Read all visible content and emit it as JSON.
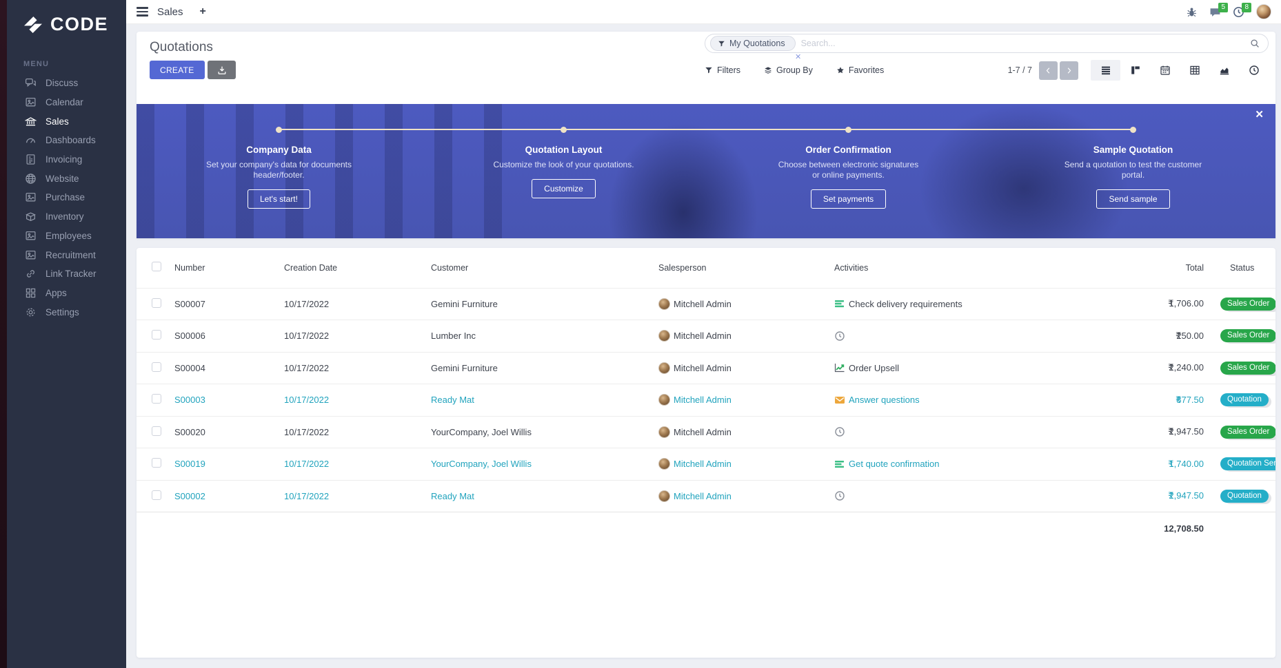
{
  "brand": {
    "name": "CODE"
  },
  "topbar": {
    "app_title": "Sales",
    "add_tab": "+",
    "message_badge": "5",
    "activity_badge": "8"
  },
  "sidebar": {
    "menu_label": "MENU",
    "items": [
      {
        "label": "Discuss",
        "icon": "chat",
        "active": false
      },
      {
        "label": "Calendar",
        "icon": "screen",
        "active": false
      },
      {
        "label": "Sales",
        "icon": "bank",
        "active": true
      },
      {
        "label": "Dashboards",
        "icon": "gauge",
        "active": false
      },
      {
        "label": "Invoicing",
        "icon": "invoice",
        "active": false
      },
      {
        "label": "Website",
        "icon": "globe",
        "active": false
      },
      {
        "label": "Purchase",
        "icon": "screen",
        "active": false
      },
      {
        "label": "Inventory",
        "icon": "box",
        "active": false
      },
      {
        "label": "Employees",
        "icon": "screen",
        "active": false
      },
      {
        "label": "Recruitment",
        "icon": "screen",
        "active": false
      },
      {
        "label": "Link Tracker",
        "icon": "link",
        "active": false
      },
      {
        "label": "Apps",
        "icon": "grid",
        "active": false
      },
      {
        "label": "Settings",
        "icon": "gear",
        "active": false
      }
    ]
  },
  "toolbar": {
    "title": "Quotations",
    "create_label": "CREATE",
    "search": {
      "facet": "My Quotations",
      "placeholder": "Search...",
      "facet_remove": "✕"
    },
    "filters_label": "Filters",
    "groupby_label": "Group By",
    "favorites_label": "Favorites",
    "pager": {
      "text": "1-7 / 7"
    },
    "views": [
      {
        "name": "list",
        "active": true
      },
      {
        "name": "kanban",
        "active": false
      },
      {
        "name": "calendar",
        "active": false
      },
      {
        "name": "pivot",
        "active": false
      },
      {
        "name": "graph",
        "active": false
      },
      {
        "name": "activity",
        "active": false
      }
    ]
  },
  "banner": {
    "close": "✕",
    "steps": [
      {
        "title": "Company Data",
        "desc": "Set your company's data for documents header/footer.",
        "button": "Let's start!"
      },
      {
        "title": "Quotation Layout",
        "desc": "Customize the look of your quotations.",
        "button": "Customize"
      },
      {
        "title": "Order Confirmation",
        "desc": "Choose between electronic signatures or online payments.",
        "button": "Set payments"
      },
      {
        "title": "Sample Quotation",
        "desc": "Send a quotation to test the customer portal.",
        "button": "Send sample"
      }
    ]
  },
  "table": {
    "headers": [
      "",
      "Number",
      "Creation Date",
      "Customer",
      "Salesperson",
      "Activities",
      "Total",
      "Status"
    ],
    "rows": [
      {
        "number": "S00007",
        "date": "10/17/2022",
        "customer": "Gemini Furniture",
        "salesperson": "Mitchell Admin",
        "activity": {
          "icon": "tasks",
          "label": "Check delivery requirements"
        },
        "currency": "₹",
        "amount": "1,706.00",
        "status": {
          "label": "Sales Order",
          "tone": "green"
        },
        "highlight": false
      },
      {
        "number": "S00006",
        "date": "10/17/2022",
        "customer": "Lumber Inc",
        "salesperson": "Mitchell Admin",
        "activity": {
          "icon": "clock",
          "label": ""
        },
        "currency": "₹",
        "amount": "250.00",
        "status": {
          "label": "Sales Order",
          "tone": "green"
        },
        "highlight": false
      },
      {
        "number": "S00004",
        "date": "10/17/2022",
        "customer": "Gemini Furniture",
        "salesperson": "Mitchell Admin",
        "activity": {
          "icon": "chart",
          "label": "Order Upsell"
        },
        "currency": "₹",
        "amount": "2,240.00",
        "status": {
          "label": "Sales Order",
          "tone": "green"
        },
        "highlight": false
      },
      {
        "number": "S00003",
        "date": "10/17/2022",
        "customer": "Ready Mat",
        "salesperson": "Mitchell Admin",
        "activity": {
          "icon": "mail",
          "label": "Answer questions"
        },
        "currency": "₹",
        "amount": "877.50",
        "status": {
          "label": "Quotation",
          "tone": "cyan"
        },
        "highlight": true
      },
      {
        "number": "S00020",
        "date": "10/17/2022",
        "customer": "YourCompany, Joel Willis",
        "salesperson": "Mitchell Admin",
        "activity": {
          "icon": "clock",
          "label": ""
        },
        "currency": "₹",
        "amount": "2,947.50",
        "status": {
          "label": "Sales Order",
          "tone": "green"
        },
        "highlight": false
      },
      {
        "number": "S00019",
        "date": "10/17/2022",
        "customer": "YourCompany, Joel Willis",
        "salesperson": "Mitchell Admin",
        "activity": {
          "icon": "tasks",
          "label": "Get quote confirmation"
        },
        "currency": "₹",
        "amount": "1,740.00",
        "status": {
          "label": "Quotation Sent",
          "tone": "cyan"
        },
        "highlight": true
      },
      {
        "number": "S00002",
        "date": "10/17/2022",
        "customer": "Ready Mat",
        "salesperson": "Mitchell Admin",
        "activity": {
          "icon": "clock",
          "label": ""
        },
        "currency": "₹",
        "amount": "2,947.50",
        "status": {
          "label": "Quotation",
          "tone": "cyan"
        },
        "highlight": true
      }
    ],
    "footer_total": "12,708.50"
  },
  "colors": {
    "accent": "#5468d4",
    "sidebar_bg": "#2a3144",
    "badge_green": "#28a64a",
    "badge_cyan": "#24aec8",
    "highlight_text": "#21a3bd",
    "banner_overlay": "#4b58ba",
    "timeline": "#efe3c6",
    "topbar_badge": "#3db04b"
  }
}
